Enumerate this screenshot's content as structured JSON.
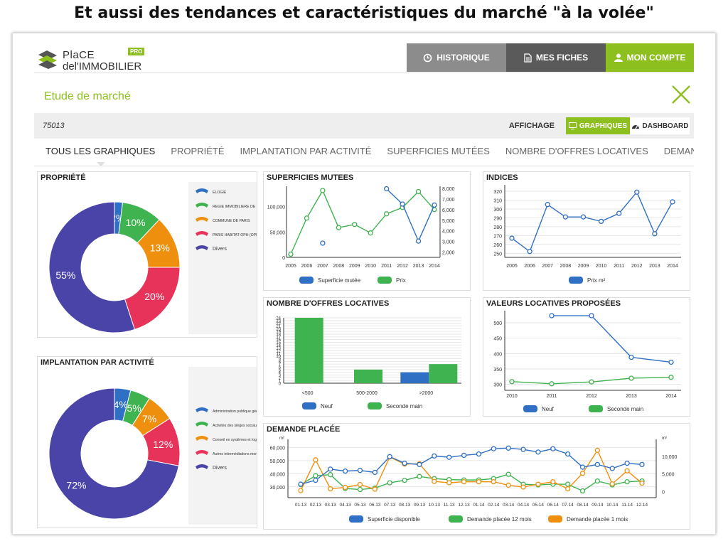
{
  "slide": {
    "title": "Et aussi des tendances et caractéristiques du marché \"à la volée\""
  },
  "app": {
    "logo_line1": "PlaCE",
    "logo_line2": "del'IMMOBILIER",
    "logo_badge": "PRO",
    "accent": "#8dbf1e"
  },
  "nav": {
    "history": "HISTORIQUE",
    "sheets": "MES FICHES",
    "account": "MON COMPTE"
  },
  "study": {
    "title": "Etude de marché",
    "close_icon": "close-x-icon"
  },
  "filter": {
    "code": "75013",
    "display_label": "AFFICHAGE",
    "graphs": "GRAPHIQUES",
    "dashboard": "DASHBOARD"
  },
  "tabs": [
    "TOUS LES GRAPHIQUES",
    "PROPRIÉTÉ",
    "IMPLANTATION PAR ACTIVITÉ",
    "SUPERFICIES MUTÉES",
    "NOMBRE D'OFFRES LOCATIVES",
    "DEMAN"
  ],
  "chart_data": [
    {
      "id": "propriete",
      "type": "pie",
      "title": "PROPRIÉTÉ",
      "labels": [
        "ELOGIE",
        "REGIE IMMOBILIERE DE LA VILL...",
        "COMMUNE DE PARIS",
        "PARIS HABITAT-OPH (OPHAP)",
        "Divers"
      ],
      "values": [
        2,
        10,
        13,
        20,
        55
      ],
      "value_labels": [
        "2%",
        "10%",
        "13%",
        "20%",
        "55%"
      ],
      "colors": [
        "#2f6fc4",
        "#3fb34f",
        "#ef8f0e",
        "#e7325a",
        "#4a43a8"
      ]
    },
    {
      "id": "implantation",
      "type": "pie",
      "title": "IMPLANTATION PAR ACTIVITÉ",
      "labels": [
        "Administration publique générale",
        "Activités des sièges sociaux",
        "Conseil en systèmes et logiciels i...",
        "Autres intermédiations monétaires",
        "Divers"
      ],
      "values": [
        4,
        5,
        7,
        12,
        72
      ],
      "value_labels": [
        "4%",
        "5%",
        "7%",
        "12%",
        "72%"
      ],
      "colors": [
        "#2f6fc4",
        "#3fb34f",
        "#ef8f0e",
        "#e7325a",
        "#4a43a8"
      ]
    },
    {
      "id": "superficies",
      "type": "line",
      "title": "SUPERFICIES MUTEES",
      "x": [
        "2005",
        "2006",
        "2007",
        "2008",
        "2009",
        "2010",
        "2011",
        "2012",
        "2013",
        "2014"
      ],
      "yticks_left": [
        "0",
        "50,000",
        "100,000"
      ],
      "ylim_left": [
        0,
        140000
      ],
      "yticks_right": [
        "2,000",
        "3,000",
        "4,000",
        "5,000",
        "6,000",
        "7,000",
        "8,000"
      ],
      "ylim_right": [
        1500,
        8200
      ],
      "series": [
        {
          "name": "Superficie mutée",
          "color": "#2f6fc4",
          "axis": "left",
          "values": [
            null,
            null,
            28000,
            null,
            null,
            null,
            135000,
            105000,
            32000,
            103000
          ]
        },
        {
          "name": "Prix",
          "color": "#3fb34f",
          "axis": "right",
          "values": [
            1800,
            5200,
            7800,
            4300,
            4600,
            3800,
            5600,
            6200,
            7700,
            6000
          ]
        }
      ]
    },
    {
      "id": "indices",
      "type": "line",
      "title": "INDICES",
      "x": [
        "2005",
        "2006",
        "2007",
        "2008",
        "2009",
        "2010",
        "2011",
        "2012",
        "2013",
        "2014"
      ],
      "yticks": [
        "250",
        "260",
        "270",
        "280",
        "290",
        "300",
        "310",
        "320"
      ],
      "ylim": [
        247,
        324
      ],
      "series": [
        {
          "name": "Prix m²",
          "color": "#2f6fc4",
          "values": [
            267,
            252,
            305,
            291,
            291,
            286,
            295,
            319,
            272,
            308
          ]
        }
      ]
    },
    {
      "id": "offres",
      "type": "bar",
      "title": "NOMBRE D'OFFRES LOCATIVES",
      "categories": [
        "<500",
        "500-2000",
        ">2000"
      ],
      "yticks": [
        "0",
        "1",
        "2",
        "3",
        "4",
        "5",
        "6",
        "7",
        "8",
        "9",
        "10",
        "11",
        "12",
        "13",
        "14",
        "15",
        "16",
        "17",
        "18",
        "19",
        "20",
        "21",
        "22",
        "23",
        "24"
      ],
      "ylim": [
        0,
        24
      ],
      "series": [
        {
          "name": "Neuf",
          "color": "#2f6fc4",
          "values": [
            0,
            0,
            4
          ]
        },
        {
          "name": "Seconde main",
          "color": "#3fb34f",
          "values": [
            24,
            5,
            7
          ]
        }
      ]
    },
    {
      "id": "valeurs",
      "type": "line",
      "title": "VALEURS LOCATIVES  PROPOSÉES",
      "x": [
        "2010",
        "2011",
        "2012",
        "2013",
        "2014"
      ],
      "yticks": [
        "300",
        "350",
        "400",
        "450",
        "500"
      ],
      "ylim": [
        290,
        530
      ],
      "series": [
        {
          "name": "Neuf",
          "color": "#2f6fc4",
          "values": [
            null,
            523,
            523,
            388,
            372
          ]
        },
        {
          "name": "Seconde main",
          "color": "#3fb34f",
          "values": [
            309,
            302,
            308,
            320,
            323
          ]
        }
      ]
    },
    {
      "id": "demande",
      "type": "line",
      "title": "DEMANDE PLACÉE",
      "unit_left": "m²",
      "unit_right": "m²",
      "x": [
        "01.13",
        "02.13",
        "03.13",
        "04.13",
        "05.13",
        "06.13",
        "07.13",
        "08.13",
        "09.13",
        "10.13",
        "11.13",
        "12.13",
        "01.14",
        "02.14",
        "03.14",
        "04.14",
        "05.14",
        "06.14",
        "07.14",
        "08.14",
        "09.14",
        "10.14",
        "11.14",
        "12.14"
      ],
      "yticks_left": [
        "30,000",
        "40,000",
        "50,000",
        "60,000"
      ],
      "ylim_left": [
        25000,
        64000
      ],
      "yticks_right": [
        "0",
        "5,000",
        "10,000"
      ],
      "ylim_right": [
        -500,
        14000
      ],
      "series": [
        {
          "name": "Superficie disponible",
          "color": "#2f6fc4",
          "axis": "left",
          "values": [
            32000,
            35000,
            43500,
            42000,
            42500,
            41000,
            53000,
            48000,
            47000,
            53500,
            52500,
            54000,
            55000,
            59000,
            59500,
            58500,
            56500,
            59000,
            55000,
            45000,
            47000,
            44000,
            48000,
            47000
          ]
        },
        {
          "name": "Demande placée 12 mois",
          "color": "#3fb34f",
          "axis": "right",
          "values": [
            2000,
            4500,
            4800,
            900,
            600,
            1000,
            2500,
            3200,
            4300,
            3700,
            3400,
            3300,
            3300,
            3700,
            4900,
            2100,
            1900,
            2100,
            2100,
            200,
            3000,
            1900,
            2800,
            3000
          ]
        },
        {
          "name": "Demande placée 1 mois",
          "color": "#ef8f0e",
          "axis": "right",
          "values": [
            300,
            9000,
            800,
            1200,
            2000,
            700,
            9800,
            7800,
            7900,
            2900,
            2500,
            2800,
            2800,
            2800,
            1800,
            1300,
            2100,
            2800,
            800,
            5200,
            11700,
            2200,
            5900,
            2400
          ]
        }
      ]
    }
  ]
}
